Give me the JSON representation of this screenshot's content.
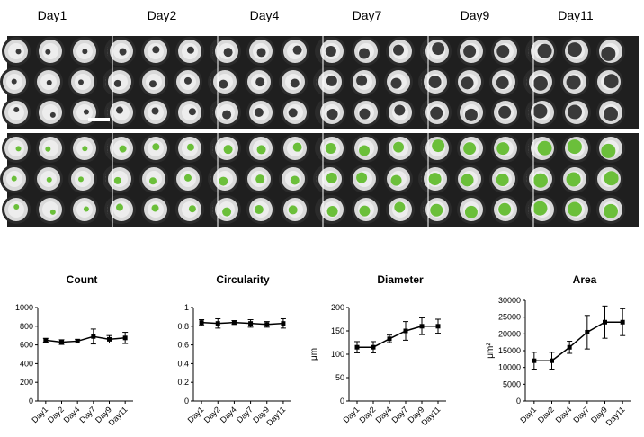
{
  "figure": {
    "day_labels": [
      "Day1",
      "Day2",
      "Day4",
      "Day7",
      "Day9",
      "Day11"
    ],
    "colors": {
      "well_background": "#d9d9d9",
      "well_ring": "#2b2b2b",
      "spheroid": "#3a3a3a",
      "segmentation_mask": "#6bbf3a",
      "line": "#000000"
    }
  },
  "chart_data": [
    {
      "type": "line",
      "title": "Count",
      "ylabel": "",
      "categories": [
        "Day1",
        "Day2",
        "Day4",
        "Day7",
        "Day9",
        "Day11"
      ],
      "values": [
        650,
        630,
        640,
        690,
        660,
        675
      ],
      "errors": [
        20,
        25,
        20,
        80,
        40,
        60
      ],
      "ylim": [
        0,
        1000
      ],
      "yticks": [
        0,
        200,
        400,
        600,
        800,
        1000
      ],
      "ytick_labels": [
        "0",
        "200",
        "400",
        "600",
        "800",
        "1000"
      ]
    },
    {
      "type": "line",
      "title": "Circularity",
      "ylabel": "",
      "categories": [
        "Day1",
        "Day2",
        "Day4",
        "Day7",
        "Day9",
        "Day11"
      ],
      "values": [
        0.84,
        0.83,
        0.84,
        0.83,
        0.82,
        0.83
      ],
      "errors": [
        0.03,
        0.05,
        0.02,
        0.04,
        0.03,
        0.05
      ],
      "ylim": [
        0,
        1
      ],
      "yticks": [
        0,
        0.2,
        0.4,
        0.6,
        0.8,
        1
      ],
      "ytick_labels": [
        "0",
        "0.2",
        "0.4",
        "0.6",
        "0.8",
        "1"
      ]
    },
    {
      "type": "line",
      "title": "Diameter",
      "ylabel": "μm",
      "categories": [
        "Day1",
        "Day2",
        "Day4",
        "Day7",
        "Day9",
        "Day11"
      ],
      "values": [
        115,
        115,
        133,
        150,
        160,
        160
      ],
      "errors": [
        12,
        12,
        8,
        20,
        18,
        15
      ],
      "ylim": [
        0,
        200
      ],
      "yticks": [
        0,
        50,
        100,
        150,
        200
      ],
      "ytick_labels": [
        "0",
        "50",
        "100",
        "150",
        "200"
      ]
    },
    {
      "type": "line",
      "title": "Area",
      "ylabel": "μm²",
      "categories": [
        "Day1",
        "Day2",
        "Day4",
        "Day7",
        "Day9",
        "Day11"
      ],
      "values": [
        12000,
        12000,
        16000,
        20500,
        23500,
        23500
      ],
      "errors": [
        2500,
        2500,
        1800,
        5000,
        4800,
        4000
      ],
      "ylim": [
        0,
        30000
      ],
      "yticks": [
        0,
        5000,
        10000,
        15000,
        20000,
        25000,
        30000
      ],
      "ytick_labels": [
        "0",
        "5000",
        "10000",
        "15000",
        "20000",
        "25000",
        "30000"
      ]
    }
  ]
}
